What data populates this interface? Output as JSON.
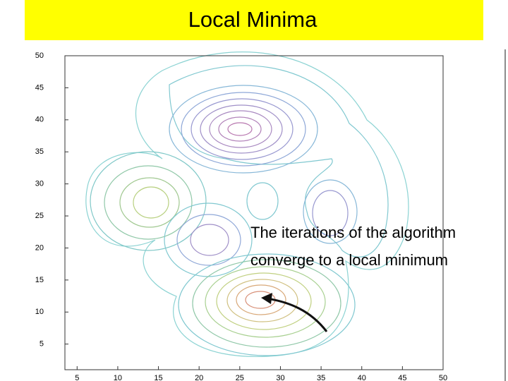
{
  "chart_data": {
    "type": "contour",
    "title": "Local Minima",
    "annotation": [
      "The iterations of the algorithm",
      "converge to a local minimum"
    ],
    "xlim": [
      3.5,
      50
    ],
    "ylim": [
      1,
      50
    ],
    "xticks": [
      5,
      10,
      15,
      20,
      25,
      30,
      35,
      40,
      45,
      50
    ],
    "yticks": [
      5,
      10,
      15,
      20,
      25,
      30,
      35,
      40,
      45,
      50
    ]
  }
}
